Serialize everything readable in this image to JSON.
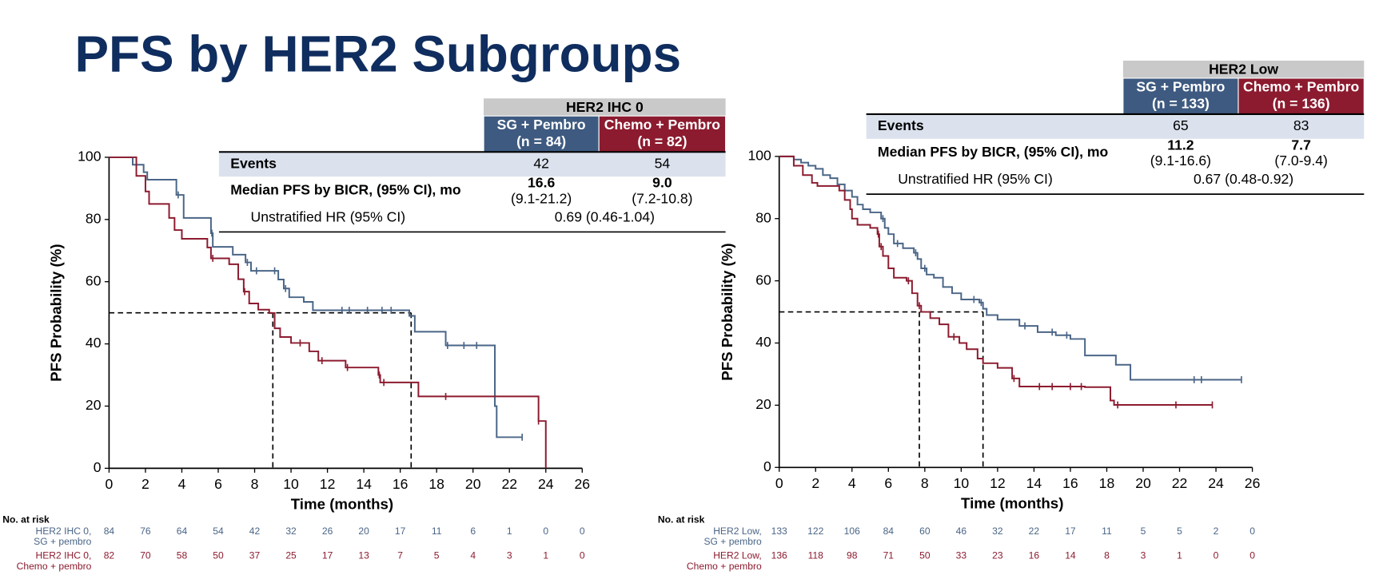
{
  "title": "PFS by HER2 Subgroups",
  "chart_data": [
    {
      "type": "line",
      "step": true,
      "xlabel": "Time (months)",
      "ylabel": "PFS Probability (%)",
      "xlim": [
        0,
        26
      ],
      "xticks": [
        0,
        2,
        4,
        6,
        8,
        10,
        12,
        14,
        16,
        18,
        20,
        22,
        24,
        26
      ],
      "ylim": [
        0,
        100
      ],
      "yticks": [
        0,
        20,
        40,
        60,
        80,
        100
      ],
      "median_y": 50,
      "series": [
        {
          "color": "#4a6587",
          "x": [
            0,
            1.3,
            1.9,
            2.1,
            3.7,
            4.1,
            5.6,
            5.7,
            6.8,
            7.5,
            7.8,
            9.3,
            9.6,
            9.9,
            10.7,
            11.2,
            16.5,
            16.8,
            18.5,
            21.2,
            21.3,
            22.7
          ],
          "values": [
            100,
            97.6,
            95.2,
            92.8,
            87.9,
            80.5,
            75.6,
            71.2,
            68.7,
            66.2,
            63.5,
            60.7,
            57.8,
            55.0,
            53.5,
            50.8,
            49.0,
            43.9,
            39.5,
            20,
            10,
            10
          ],
          "censored": {
            "x": [
              3.8,
              5.65,
              7.6,
              8.1,
              9.1,
              9.7,
              12.8,
              13.2,
              14.2,
              15.0,
              15.5,
              18.6,
              19.5,
              20.2,
              22.7
            ],
            "values": [
              87.9,
              75.6,
              66.2,
              63.5,
              63.5,
              57.8,
              50.8,
              50.8,
              50.8,
              50.8,
              50.8,
              39.5,
              39.5,
              39.5,
              10
            ]
          }
        },
        {
          "color": "#8c1b2f",
          "x": [
            0,
            1.5,
            2,
            2.2,
            3.3,
            3.6,
            4,
            5.4,
            5.6,
            6.6,
            7.1,
            7.4,
            7.7,
            8.2,
            8.8,
            9.1,
            9.4,
            10,
            11,
            11.5,
            13,
            14.8,
            14.9,
            17,
            23.6,
            24
          ],
          "values": [
            100,
            94,
            89,
            85,
            80.5,
            76.6,
            73.8,
            71,
            67.5,
            65.6,
            60.8,
            56.8,
            53,
            51,
            49.9,
            45,
            42.2,
            40.3,
            37.6,
            34.6,
            32.4,
            30,
            27.6,
            23.1,
            15.2,
            0
          ],
          "censored": {
            "x": [
              5.7,
              7.45,
              10.5,
              11.7,
              13.1,
              14.85,
              15.1,
              18.5,
              23.6
            ],
            "values": [
              67.5,
              56.8,
              40.3,
              34.6,
              32.4,
              30,
              27.6,
              23.1,
              15.2
            ]
          }
        }
      ],
      "table": {
        "title": "HER2 IHC 0",
        "columns": [
          [
            "SG + Pembro",
            "(n = 84)"
          ],
          [
            "Chemo + Pembro",
            "(n = 82)"
          ]
        ],
        "events": {
          "label": "Events",
          "values": [
            42,
            54
          ]
        },
        "median": {
          "label": "Median PFS by BICR, (95% CI), mo",
          "values": [
            16.6,
            {
              "value": 9.0,
              "label": "9.0"
            }
          ],
          "ci": [
            "(9.1-21.2)",
            "(7.2-10.8)"
          ]
        },
        "hr": {
          "label": "Unstratified HR (95% CI)",
          "value": "0.69 (0.46-1.04)"
        }
      },
      "risk_table": {
        "title": "No. at risk",
        "rows": [
          {
            "label": [
              "HER2 IHC 0,",
              "SG + pembro"
            ],
            "values": [
              84,
              76,
              64,
              54,
              42,
              32,
              26,
              20,
              17,
              11,
              6,
              1,
              0,
              0
            ]
          },
          {
            "label": [
              "HER2 IHC 0,",
              "Chemo + pembro"
            ],
            "values": [
              82,
              70,
              58,
              50,
              37,
              25,
              17,
              13,
              7,
              5,
              4,
              3,
              1,
              0
            ]
          }
        ]
      }
    },
    {
      "type": "line",
      "step": true,
      "xlabel": "Time (months)",
      "ylabel": "PFS Probability (%)",
      "xlim": [
        0,
        26
      ],
      "xticks": [
        0,
        2,
        4,
        6,
        8,
        10,
        12,
        14,
        16,
        18,
        20,
        22,
        24,
        26
      ],
      "ylim": [
        0,
        100
      ],
      "yticks": [
        0,
        20,
        40,
        60,
        80,
        100
      ],
      "median_y": 50,
      "series": [
        {
          "color": "#4a6587",
          "x": [
            0,
            0.8,
            1.2,
            1.6,
            2,
            2.4,
            2.8,
            3.2,
            3.6,
            4,
            4.3,
            4.6,
            5,
            5.6,
            5.8,
            6,
            6.3,
            6.8,
            7.4,
            7.6,
            7.8,
            8.1,
            8.5,
            9,
            9.5,
            10,
            11,
            11.2,
            11.4,
            12,
            13.2,
            14.2,
            15.2,
            16,
            16.8,
            18.5,
            19.3,
            25.4
          ],
          "values": [
            100,
            99,
            98,
            97,
            96,
            94,
            93,
            91,
            89,
            87,
            84.5,
            83,
            82,
            80,
            77,
            75,
            72,
            70.5,
            69,
            67,
            64,
            62,
            61,
            58,
            56,
            54,
            53,
            51,
            49,
            47.5,
            45.5,
            43.5,
            42.5,
            41.3,
            36,
            33,
            28.2,
            28.2
          ],
          "censored": {
            "x": [
              5.7,
              6.5,
              7.5,
              8.0,
              10.7,
              11.1,
              13.5,
              15.0,
              15.8,
              22.8,
              23.2,
              25.4
            ],
            "values": [
              80,
              72,
              69,
              64,
              54,
              53,
              45.5,
              43.5,
              42.5,
              28.2,
              28.2,
              28.2
            ]
          }
        },
        {
          "color": "#8c1b2f",
          "x": [
            0,
            0.8,
            1.3,
            1.8,
            2.1,
            3.3,
            3.6,
            3.9,
            4,
            4.3,
            5,
            5.4,
            5.5,
            5.7,
            6,
            6.3,
            7,
            7.3,
            7.6,
            7.8,
            8.3,
            8.8,
            9.3,
            9.9,
            10.3,
            10.9,
            11.2,
            12,
            12.8,
            13.2,
            16.8,
            18.2,
            18.4,
            23.8
          ],
          "values": [
            100,
            97,
            94,
            91.5,
            90.5,
            89,
            86,
            83,
            80,
            78,
            77,
            75,
            71,
            68,
            64,
            61,
            60,
            56,
            52,
            50,
            48,
            46,
            42,
            40,
            38,
            35,
            33.5,
            32,
            28.6,
            26,
            25.8,
            21.5,
            20.1,
            20.1
          ],
          "censored": {
            "x": [
              5.45,
              5.6,
              7.1,
              7.7,
              9.6,
              12.9,
              14.3,
              15.0,
              16.0,
              16.6,
              18.6,
              21.8,
              23.8
            ],
            "values": [
              75,
              71,
              60,
              52,
              42,
              28.6,
              26,
              26,
              26,
              26,
              20.1,
              20.1,
              20.1
            ]
          }
        }
      ],
      "table": {
        "title": "HER2 Low",
        "columns": [
          [
            "SG + Pembro",
            "(n = 133)"
          ],
          [
            "Chemo + Pembro",
            "(n = 136)"
          ]
        ],
        "events": {
          "label": "Events",
          "values": [
            65,
            83
          ]
        },
        "median": {
          "label": "Median PFS by BICR, (95% CI), mo",
          "values": [
            11.2,
            7.7
          ],
          "ci": [
            "(9.1-16.6)",
            "(7.0-9.4)"
          ]
        },
        "hr": {
          "label": "Unstratified HR (95% CI)",
          "value": "0.67 (0.48-0.92)"
        }
      },
      "risk_table": {
        "title": "No. at risk",
        "rows": [
          {
            "label": [
              "HER2 Low,",
              "SG + pembro"
            ],
            "values": [
              133,
              122,
              106,
              84,
              60,
              46,
              32,
              22,
              17,
              11,
              5,
              5,
              2,
              0
            ]
          },
          {
            "label": [
              "HER2 Low,",
              "Chemo + pembro"
            ],
            "values": [
              136,
              118,
              98,
              71,
              50,
              33,
              23,
              16,
              14,
              8,
              3,
              1,
              0,
              0
            ]
          }
        ]
      }
    }
  ]
}
